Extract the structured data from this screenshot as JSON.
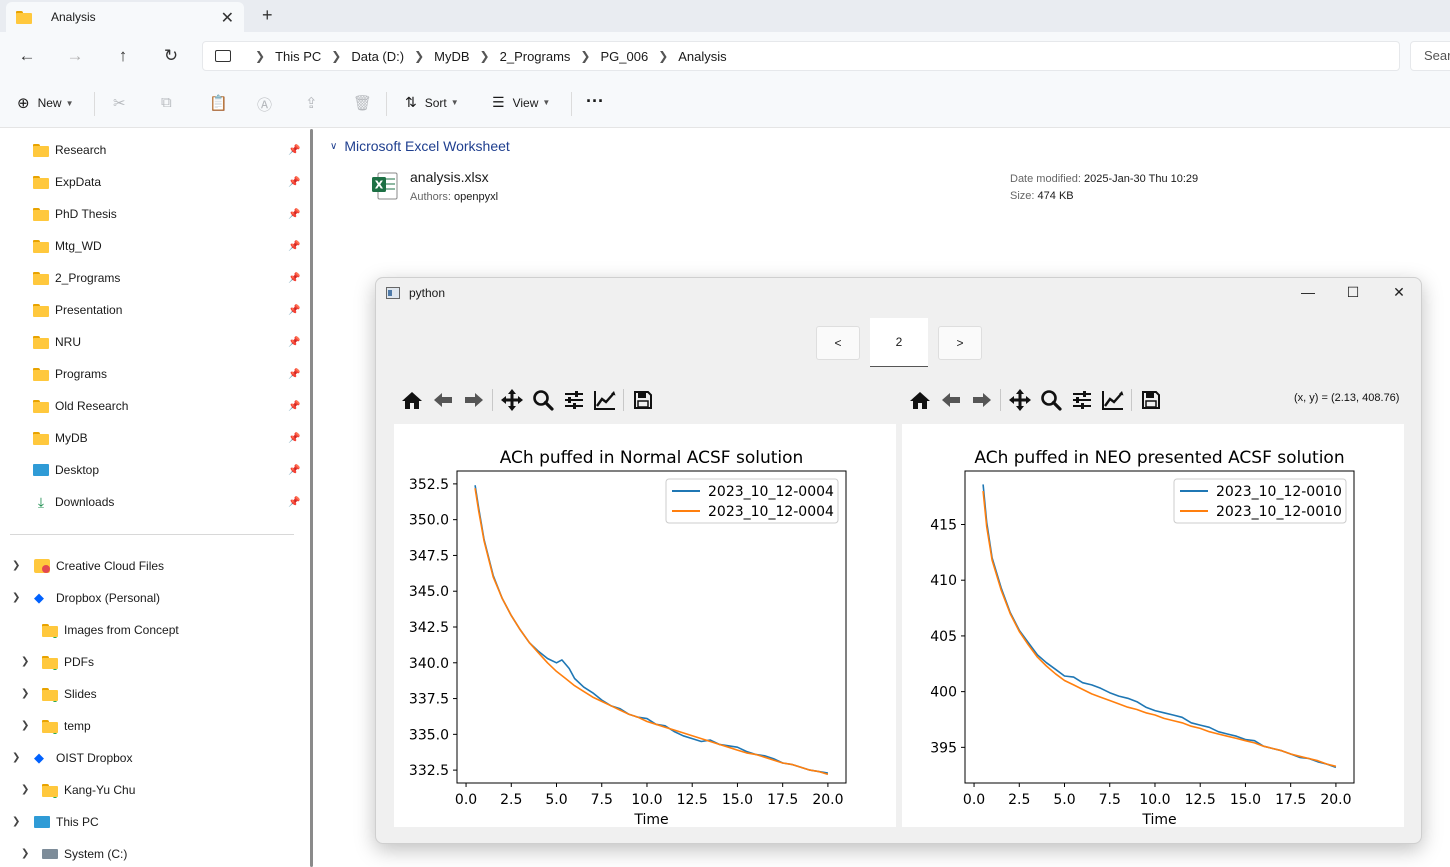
{
  "tab": {
    "title": "Analysis"
  },
  "address": {
    "crumbs": [
      "This PC",
      "Data (D:)",
      "MyDB",
      "2_Programs",
      "PG_006",
      "Analysis"
    ],
    "search_placeholder": "Sear"
  },
  "toolbar": {
    "new_label": "New",
    "sort_label": "Sort",
    "view_label": "View",
    "more_label": "···"
  },
  "sidebar": {
    "quick": [
      "Research",
      "ExpData",
      "PhD Thesis",
      "Mtg_WD",
      "2_Programs",
      "Presentation",
      "NRU",
      "Programs",
      "Old Research",
      "MyDB"
    ],
    "desktop": "Desktop",
    "downloads": "Downloads",
    "tree": {
      "creative_cloud": "Creative Cloud Files",
      "dropbox": "Dropbox (Personal)",
      "images_from_concept": "Images from Concept",
      "pdfs": "PDFs",
      "slides": "Slides",
      "temp": "temp",
      "oist_dropbox": "OIST Dropbox",
      "kang_yu_chu": "Kang-Yu Chu",
      "this_pc": "This PC",
      "system_c": "System (C:)"
    }
  },
  "content": {
    "group_title": "Microsoft Excel Worksheet",
    "file": {
      "name": "analysis.xlsx",
      "authors_label": "Authors:",
      "authors": "openpyxl",
      "date_label": "Date modified:",
      "date": "2025-Jan-30 Thu 10:29",
      "size_label": "Size:",
      "size": "474 KB"
    }
  },
  "python_window": {
    "title": "python",
    "prev_label": "<",
    "page": "2",
    "next_label": ">",
    "coord_readout": "(x, y) = (2.13, 408.76)"
  },
  "colors": {
    "series_blue": "#1f77b4",
    "series_orange": "#ff7f0e",
    "folder": "#ffc83d",
    "accent_text": "#1f3f8f"
  },
  "chart_data": [
    {
      "type": "line",
      "title": "ACh puffed in Normal ACSF solution",
      "xlabel": "Time",
      "ylabel": "",
      "xlim": [
        -0.5,
        21.0
      ],
      "ylim": [
        331.6,
        353.4
      ],
      "xticks": [
        0,
        2.5,
        5,
        7.5,
        10,
        12.5,
        15,
        17.5,
        20
      ],
      "xtick_labels": [
        "0.0",
        "2.5",
        "5.0",
        "7.5",
        "10.0",
        "12.5",
        "15.0",
        "17.5",
        "20.0"
      ],
      "yticks": [
        332.5,
        335,
        337.5,
        340,
        342.5,
        345,
        347.5,
        350,
        352.5
      ],
      "ytick_labels": [
        "332.5",
        "335.0",
        "337.5",
        "340.0",
        "342.5",
        "345.0",
        "347.5",
        "350.0",
        "352.5"
      ],
      "legend_position": "top-right",
      "series": [
        {
          "name": "2023_10_12-0004",
          "color": "#1f77b4",
          "x": [
            0.5,
            0.7,
            1.0,
            1.5,
            2.0,
            2.5,
            3.0,
            3.5,
            4.0,
            4.5,
            5.0,
            5.3,
            5.7,
            6.0,
            6.5,
            7.0,
            7.5,
            8.0,
            8.5,
            9.0,
            9.5,
            10.0,
            10.5,
            11.0,
            11.5,
            12.0,
            12.5,
            13.0,
            13.5,
            14.0,
            14.5,
            15.0,
            15.5,
            16.0,
            16.5,
            17.0,
            17.5,
            18.0,
            18.5,
            19.0,
            19.5,
            20.0
          ],
          "y": [
            352.4,
            350.8,
            348.6,
            346.1,
            344.5,
            343.3,
            342.3,
            341.4,
            340.8,
            340.3,
            340.0,
            340.2,
            339.6,
            338.9,
            338.3,
            337.9,
            337.4,
            337.0,
            336.8,
            336.4,
            336.2,
            336.1,
            335.7,
            335.6,
            335.2,
            334.9,
            334.7,
            334.5,
            334.6,
            334.3,
            334.2,
            334.1,
            333.8,
            333.6,
            333.5,
            333.3,
            333.0,
            332.9,
            332.7,
            332.5,
            332.4,
            332.3
          ]
        },
        {
          "name": "2023_10_12-0004",
          "color": "#ff7f0e",
          "x": [
            0.5,
            0.7,
            1.0,
            1.5,
            2.0,
            2.5,
            3.0,
            3.5,
            4.0,
            4.5,
            5.0,
            5.5,
            6.0,
            6.5,
            7.0,
            7.5,
            8.0,
            8.5,
            9.0,
            9.5,
            10.0,
            10.5,
            11.0,
            11.5,
            12.0,
            12.5,
            13.0,
            13.5,
            14.0,
            14.5,
            15.0,
            15.5,
            16.0,
            16.5,
            17.0,
            17.5,
            18.0,
            18.5,
            19.0,
            19.5,
            20.0
          ],
          "y": [
            352.2,
            350.6,
            348.5,
            346.0,
            344.5,
            343.3,
            342.3,
            341.4,
            340.7,
            340.0,
            339.4,
            338.9,
            338.4,
            338.0,
            337.6,
            337.3,
            337.0,
            336.7,
            336.4,
            336.2,
            335.9,
            335.7,
            335.5,
            335.3,
            335.1,
            334.9,
            334.7,
            334.5,
            334.3,
            334.1,
            333.9,
            333.7,
            333.6,
            333.4,
            333.2,
            333.0,
            332.9,
            332.7,
            332.5,
            332.4,
            332.2
          ]
        }
      ]
    },
    {
      "type": "line",
      "title": "ACh puffed in NEO presented ACSF solution",
      "xlabel": "Time",
      "ylabel": "",
      "xlim": [
        -0.5,
        21.0
      ],
      "ylim": [
        391.8,
        419.8
      ],
      "xticks": [
        0,
        2.5,
        5,
        7.5,
        10,
        12.5,
        15,
        17.5,
        20
      ],
      "xtick_labels": [
        "0.0",
        "2.5",
        "5.0",
        "7.5",
        "10.0",
        "12.5",
        "15.0",
        "17.5",
        "20.0"
      ],
      "yticks": [
        395,
        400,
        405,
        410,
        415
      ],
      "ytick_labels": [
        "395",
        "400",
        "405",
        "410",
        "415"
      ],
      "legend_position": "top-right",
      "series": [
        {
          "name": "2023_10_12-0010",
          "color": "#1f77b4",
          "x": [
            0.5,
            0.7,
            1.0,
            1.5,
            2.0,
            2.5,
            3.0,
            3.5,
            4.0,
            4.5,
            5.0,
            5.5,
            6.0,
            6.5,
            7.0,
            7.5,
            8.0,
            8.5,
            9.0,
            9.5,
            10.0,
            10.5,
            11.0,
            11.5,
            12.0,
            12.5,
            13.0,
            13.5,
            14.0,
            14.5,
            15.0,
            15.5,
            16.0,
            16.5,
            17.0,
            17.5,
            18.0,
            18.5,
            19.0,
            19.5,
            20.0
          ],
          "y": [
            418.6,
            415.2,
            412.0,
            409.3,
            407.1,
            405.5,
            404.4,
            403.3,
            402.6,
            402.0,
            401.4,
            401.3,
            400.8,
            400.6,
            400.3,
            399.9,
            399.6,
            399.4,
            399.1,
            398.6,
            398.3,
            398.1,
            397.9,
            397.7,
            397.2,
            397.0,
            396.8,
            396.4,
            396.2,
            396.0,
            395.7,
            395.6,
            395.1,
            394.9,
            394.7,
            394.4,
            394.1,
            394.0,
            393.7,
            393.5,
            393.2
          ]
        },
        {
          "name": "2023_10_12-0010",
          "color": "#ff7f0e",
          "x": [
            0.5,
            0.7,
            1.0,
            1.5,
            2.0,
            2.5,
            3.0,
            3.5,
            4.0,
            4.5,
            5.0,
            5.5,
            6.0,
            6.5,
            7.0,
            7.5,
            8.0,
            8.5,
            9.0,
            9.5,
            10.0,
            10.5,
            11.0,
            11.5,
            12.0,
            12.5,
            13.0,
            13.5,
            14.0,
            14.5,
            15.0,
            15.5,
            16.0,
            16.5,
            17.0,
            17.5,
            18.0,
            18.5,
            19.0,
            19.5,
            20.0
          ],
          "y": [
            418.0,
            414.8,
            411.8,
            409.1,
            407.0,
            405.4,
            404.2,
            403.1,
            402.3,
            401.6,
            401.0,
            400.6,
            400.2,
            399.8,
            399.5,
            399.2,
            398.9,
            398.6,
            398.4,
            398.1,
            397.9,
            397.6,
            397.4,
            397.2,
            396.9,
            396.7,
            396.4,
            396.2,
            396.0,
            395.8,
            395.6,
            395.4,
            395.1,
            394.9,
            394.7,
            394.4,
            394.2,
            394.0,
            393.8,
            393.5,
            393.3
          ]
        }
      ]
    }
  ]
}
